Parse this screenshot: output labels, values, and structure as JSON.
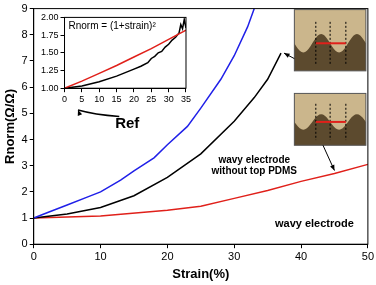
{
  "chart_data": [
    {
      "type": "line",
      "x_label": "Strain(%)",
      "y_label": "Rnorm(Ω/Ω)",
      "xlim": [
        0,
        50
      ],
      "ylim": [
        0,
        9
      ],
      "xticks": [
        0,
        10,
        20,
        30,
        40,
        50
      ],
      "yticks": [
        0,
        1,
        2,
        3,
        4,
        5,
        6,
        7,
        8,
        9
      ],
      "grid": false,
      "series": [
        {
          "name": "Ref",
          "color": "#2020e8",
          "x": [
            0,
            2,
            5,
            8,
            10,
            13,
            15,
            18,
            20,
            23,
            25,
            28,
            30,
            32,
            33
          ],
          "values": [
            1,
            1.2,
            1.5,
            1.8,
            2.0,
            2.45,
            2.8,
            3.3,
            3.8,
            4.5,
            5.2,
            6.3,
            7.2,
            8.3,
            9
          ]
        },
        {
          "name": "wavy electrode without top PDMS",
          "color": "#000000",
          "x": [
            0,
            5,
            10,
            15,
            20,
            25,
            30,
            33,
            35,
            37
          ],
          "values": [
            1,
            1.15,
            1.4,
            1.85,
            2.55,
            3.45,
            4.7,
            5.6,
            6.3,
            7.3
          ]
        },
        {
          "name": "wavy electrode",
          "color": "#e0201a",
          "x": [
            0,
            10,
            20,
            25,
            30,
            35,
            40,
            45,
            50
          ],
          "values": [
            1,
            1.08,
            1.3,
            1.45,
            1.75,
            2.05,
            2.4,
            2.7,
            3.05
          ]
        }
      ]
    },
    {
      "type": "line",
      "xlim": [
        0,
        35
      ],
      "ylim": [
        1,
        2
      ],
      "xticks": [
        0,
        5,
        10,
        15,
        20,
        25,
        30,
        35
      ],
      "yticks": [
        {
          "value": 1,
          "label": "1.00"
        },
        {
          "value": 1.25,
          "label": "1.25"
        },
        {
          "value": 1.5,
          "label": "1.50"
        },
        {
          "value": 1.75,
          "label": "1.75"
        },
        {
          "value": 2,
          "label": "2.00"
        }
      ],
      "grid": false,
      "series": [
        {
          "name": "Rnorm = (1+strain)²",
          "color": "#e0201a",
          "x": [
            0,
            5,
            10,
            15,
            20,
            25,
            30,
            35
          ],
          "values": [
            1,
            1.1,
            1.21,
            1.32,
            1.44,
            1.56,
            1.69,
            1.82
          ]
        },
        {
          "color": "#000000",
          "x": [
            0,
            5,
            10,
            15,
            20,
            22,
            24,
            25,
            26,
            27,
            28,
            29,
            30,
            31,
            32,
            33,
            33.5,
            34,
            34.5,
            35
          ],
          "values": [
            1,
            1.03,
            1.09,
            1.17,
            1.27,
            1.31,
            1.36,
            1.42,
            1.45,
            1.5,
            1.52,
            1.58,
            1.62,
            1.68,
            1.72,
            1.78,
            1.9,
            1.84,
            1.97,
            1.85
          ]
        }
      ]
    }
  ]
}
